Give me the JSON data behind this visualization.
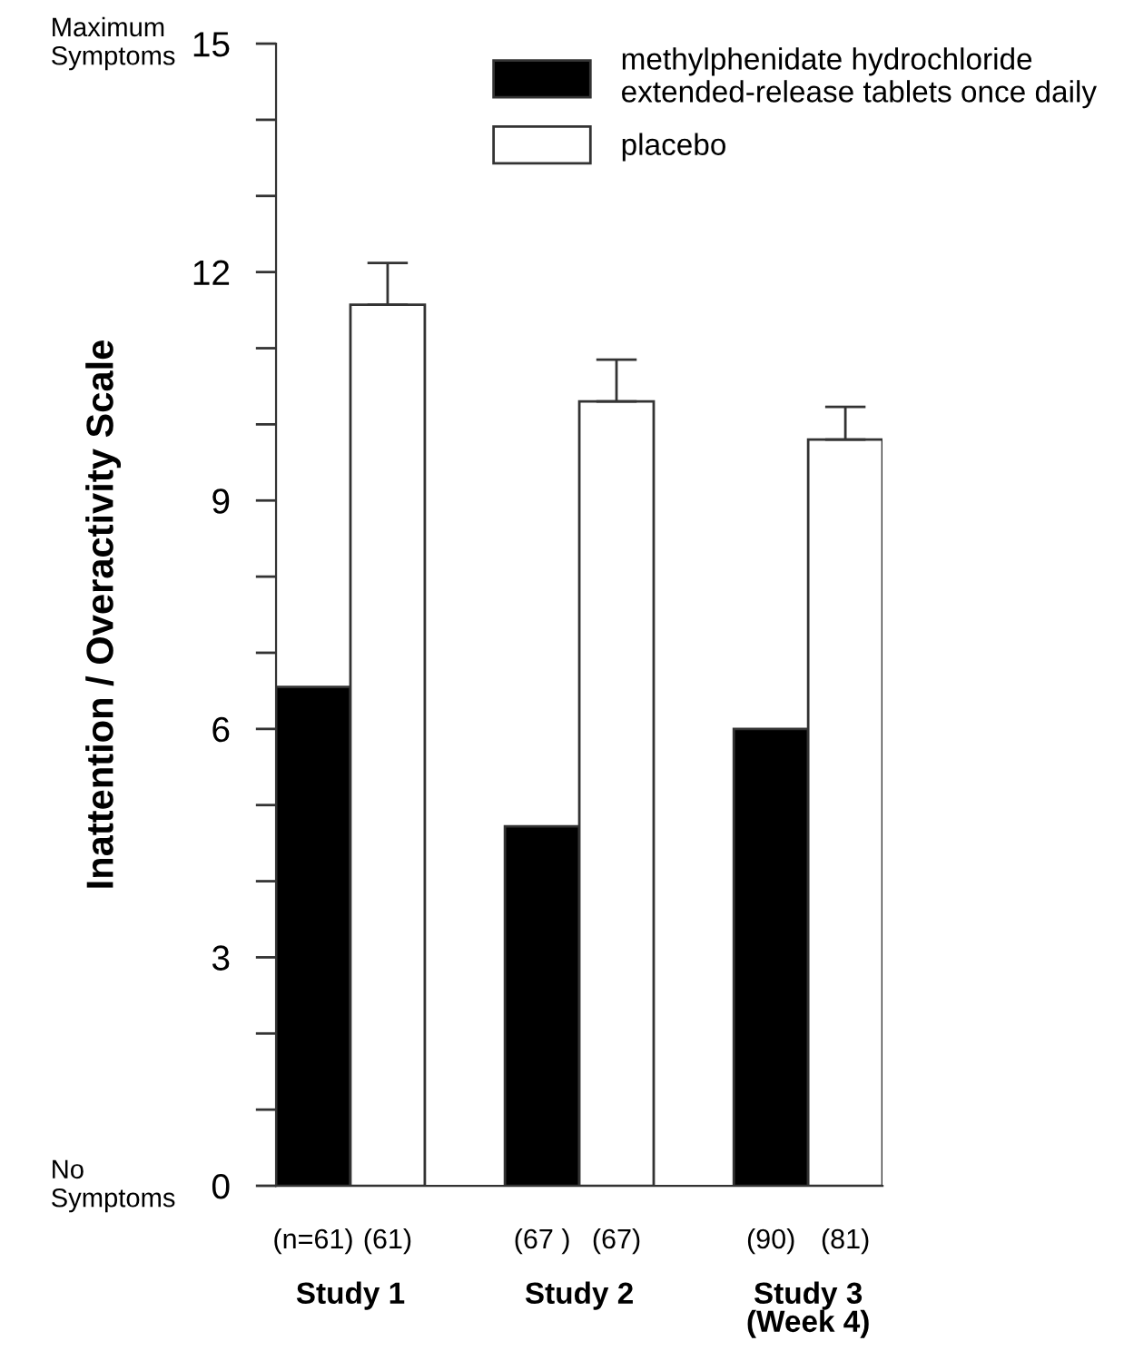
{
  "chart_data": {
    "type": "bar",
    "ylabel": "Inattention / Overactivity Scale",
    "categories": [
      "Study 1",
      "Study 2",
      "Study 3\n(Week 4)"
    ],
    "series": [
      {
        "name": "methylphenidate hydrochloride\nextended-release tablets once daily",
        "color": "#000000",
        "values": [
          6.55,
          4.72,
          6.0
        ]
      },
      {
        "name": "placebo",
        "color": "#ffffff",
        "values": [
          11.57,
          10.3,
          9.8
        ],
        "errors": [
          [
            11.57,
            12.12
          ],
          [
            10.3,
            10.85
          ],
          [
            9.8,
            10.23
          ]
        ]
      }
    ],
    "ylim": [
      0,
      15
    ],
    "yticks": [
      0,
      {
        "value": 1,
        "label": null
      },
      {
        "value": 2,
        "label": null
      },
      3,
      {
        "value": 4,
        "label": null
      },
      {
        "value": 5,
        "label": null
      },
      6,
      {
        "value": 7,
        "label": null
      },
      {
        "value": 8,
        "label": null
      },
      9,
      {
        "value": 10,
        "label": null
      },
      {
        "value": 11,
        "label": null
      },
      12,
      {
        "value": 13,
        "label": null
      },
      {
        "value": 14,
        "label": null
      },
      15
    ],
    "grid": false,
    "legend": "top right",
    "annotations": [
      "Maximum\nSymptoms",
      "No\nSymptoms",
      "(n=61)",
      "(61)",
      "(67 )",
      "(67)",
      "(90)",
      "(81)"
    ]
  }
}
